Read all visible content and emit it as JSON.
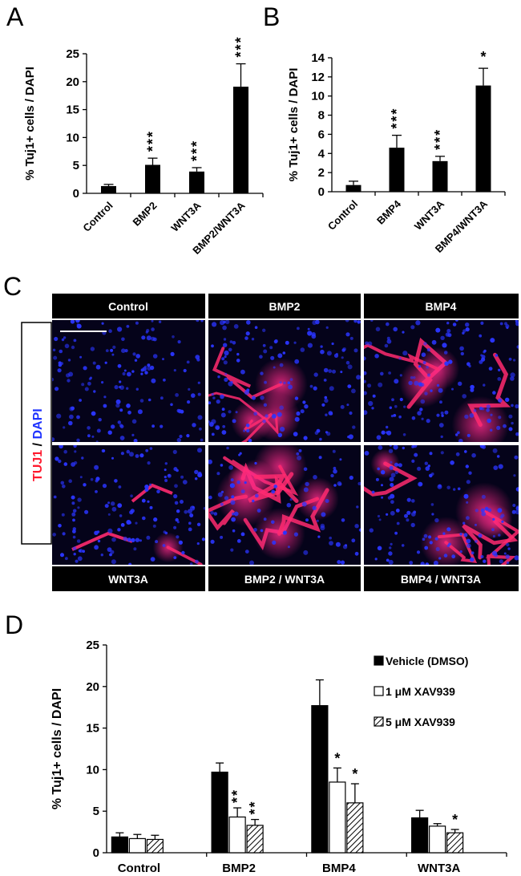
{
  "panels": {
    "a": "A",
    "b": "B",
    "c": "C",
    "d": "D"
  },
  "colors": {
    "tuj1": "#ff1a2e",
    "dapi": "#1f33ff",
    "black": "#000000",
    "white": "#ffffff"
  },
  "panel_c": {
    "stain_label_tuj1": "TUJ1",
    "stain_label_sep": " / ",
    "stain_label_dapi": "DAPI",
    "top_headers": [
      "Control",
      "BMP2",
      "BMP4"
    ],
    "bottom_headers": [
      "WNT3A",
      "BMP2 / WNT3A",
      "BMP4 / WNT3A"
    ]
  },
  "chart_data": [
    {
      "type": "bar",
      "panel": "A",
      "ylabel": "% Tuj1+ cells / DAPI",
      "ylim": [
        0,
        25
      ],
      "yticks": [
        0,
        5,
        10,
        15,
        20,
        25
      ],
      "categories": [
        "Control",
        "BMP2",
        "WNT3A",
        "BMP2/WNT3A"
      ],
      "values": [
        1.3,
        5.1,
        3.9,
        19.1
      ],
      "errors": [
        0.3,
        1.2,
        0.7,
        4.1
      ],
      "significance": [
        "",
        "***",
        "***",
        "***"
      ]
    },
    {
      "type": "bar",
      "panel": "B",
      "ylabel": "% Tuj1+ cells / DAPI",
      "ylim": [
        0,
        14
      ],
      "yticks": [
        0,
        2,
        4,
        6,
        8,
        10,
        12,
        14
      ],
      "categories": [
        "Control",
        "BMP4",
        "WNT3A",
        "BMP4/WNT3A"
      ],
      "values": [
        0.7,
        4.6,
        3.2,
        11.1
      ],
      "errors": [
        0.4,
        1.3,
        0.5,
        1.8
      ],
      "significance": [
        "",
        "***",
        "***",
        "*"
      ]
    },
    {
      "type": "bar",
      "panel": "D",
      "ylabel": "% Tuj1+ cells / DAPI",
      "ylim": [
        0,
        25
      ],
      "yticks": [
        0,
        5,
        10,
        15,
        20,
        25
      ],
      "categories": [
        "Control",
        "BMP2",
        "BMP4",
        "WNT3A"
      ],
      "legend_position": "top-right",
      "series": [
        {
          "name": "Vehicle (DMSO)",
          "fill": "black",
          "values": [
            1.9,
            9.7,
            17.7,
            4.2
          ],
          "errors": [
            0.5,
            1.1,
            3.1,
            0.9
          ],
          "significance": [
            "",
            "",
            "",
            ""
          ]
        },
        {
          "name": "1 μM XAV939",
          "fill": "white",
          "values": [
            1.7,
            4.3,
            8.5,
            3.2
          ],
          "errors": [
            0.5,
            1.1,
            1.7,
            0.3
          ],
          "significance": [
            "",
            "**",
            "*",
            ""
          ]
        },
        {
          "name": "5 μM XAV939",
          "fill": "hatch",
          "values": [
            1.6,
            3.3,
            6.0,
            2.4
          ],
          "errors": [
            0.5,
            0.7,
            2.3,
            0.4
          ],
          "significance": [
            "",
            "**",
            "*",
            "*"
          ]
        }
      ]
    }
  ]
}
